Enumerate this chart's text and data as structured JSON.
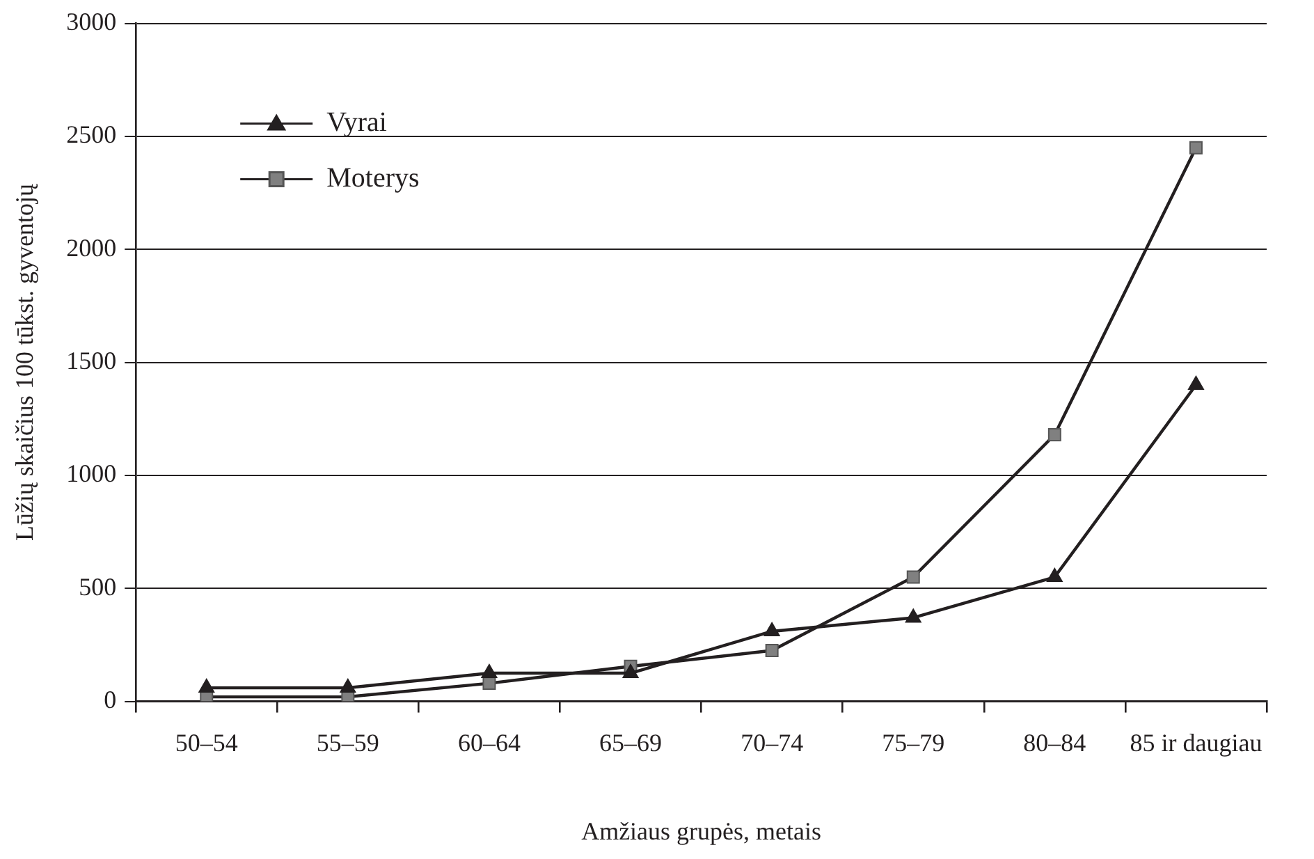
{
  "chart_data": {
    "type": "line",
    "xlabel": "Amžiaus grupės, metais",
    "ylabel": "Lūžių skaičius 100 tūkst. gyventojų",
    "categories": [
      "50–54",
      "55–59",
      "60–64",
      "65–69",
      "70–74",
      "75–79",
      "80–84",
      "85 ir daugiau"
    ],
    "series": [
      {
        "name": "Vyrai",
        "color": "#231f20",
        "marker": "triangle",
        "values": [
          60,
          60,
          125,
          125,
          310,
          370,
          550,
          1400
        ]
      },
      {
        "name": "Moterys",
        "color": "#808080",
        "marker": "square",
        "values": [
          20,
          20,
          80,
          155,
          225,
          550,
          1180,
          2450
        ]
      }
    ],
    "ylim": [
      0,
      3000
    ],
    "yticks": [
      0,
      500,
      1000,
      1500,
      2000,
      2500,
      3000
    ],
    "grid": "y",
    "legend": "top left",
    "line_style": "solid"
  }
}
